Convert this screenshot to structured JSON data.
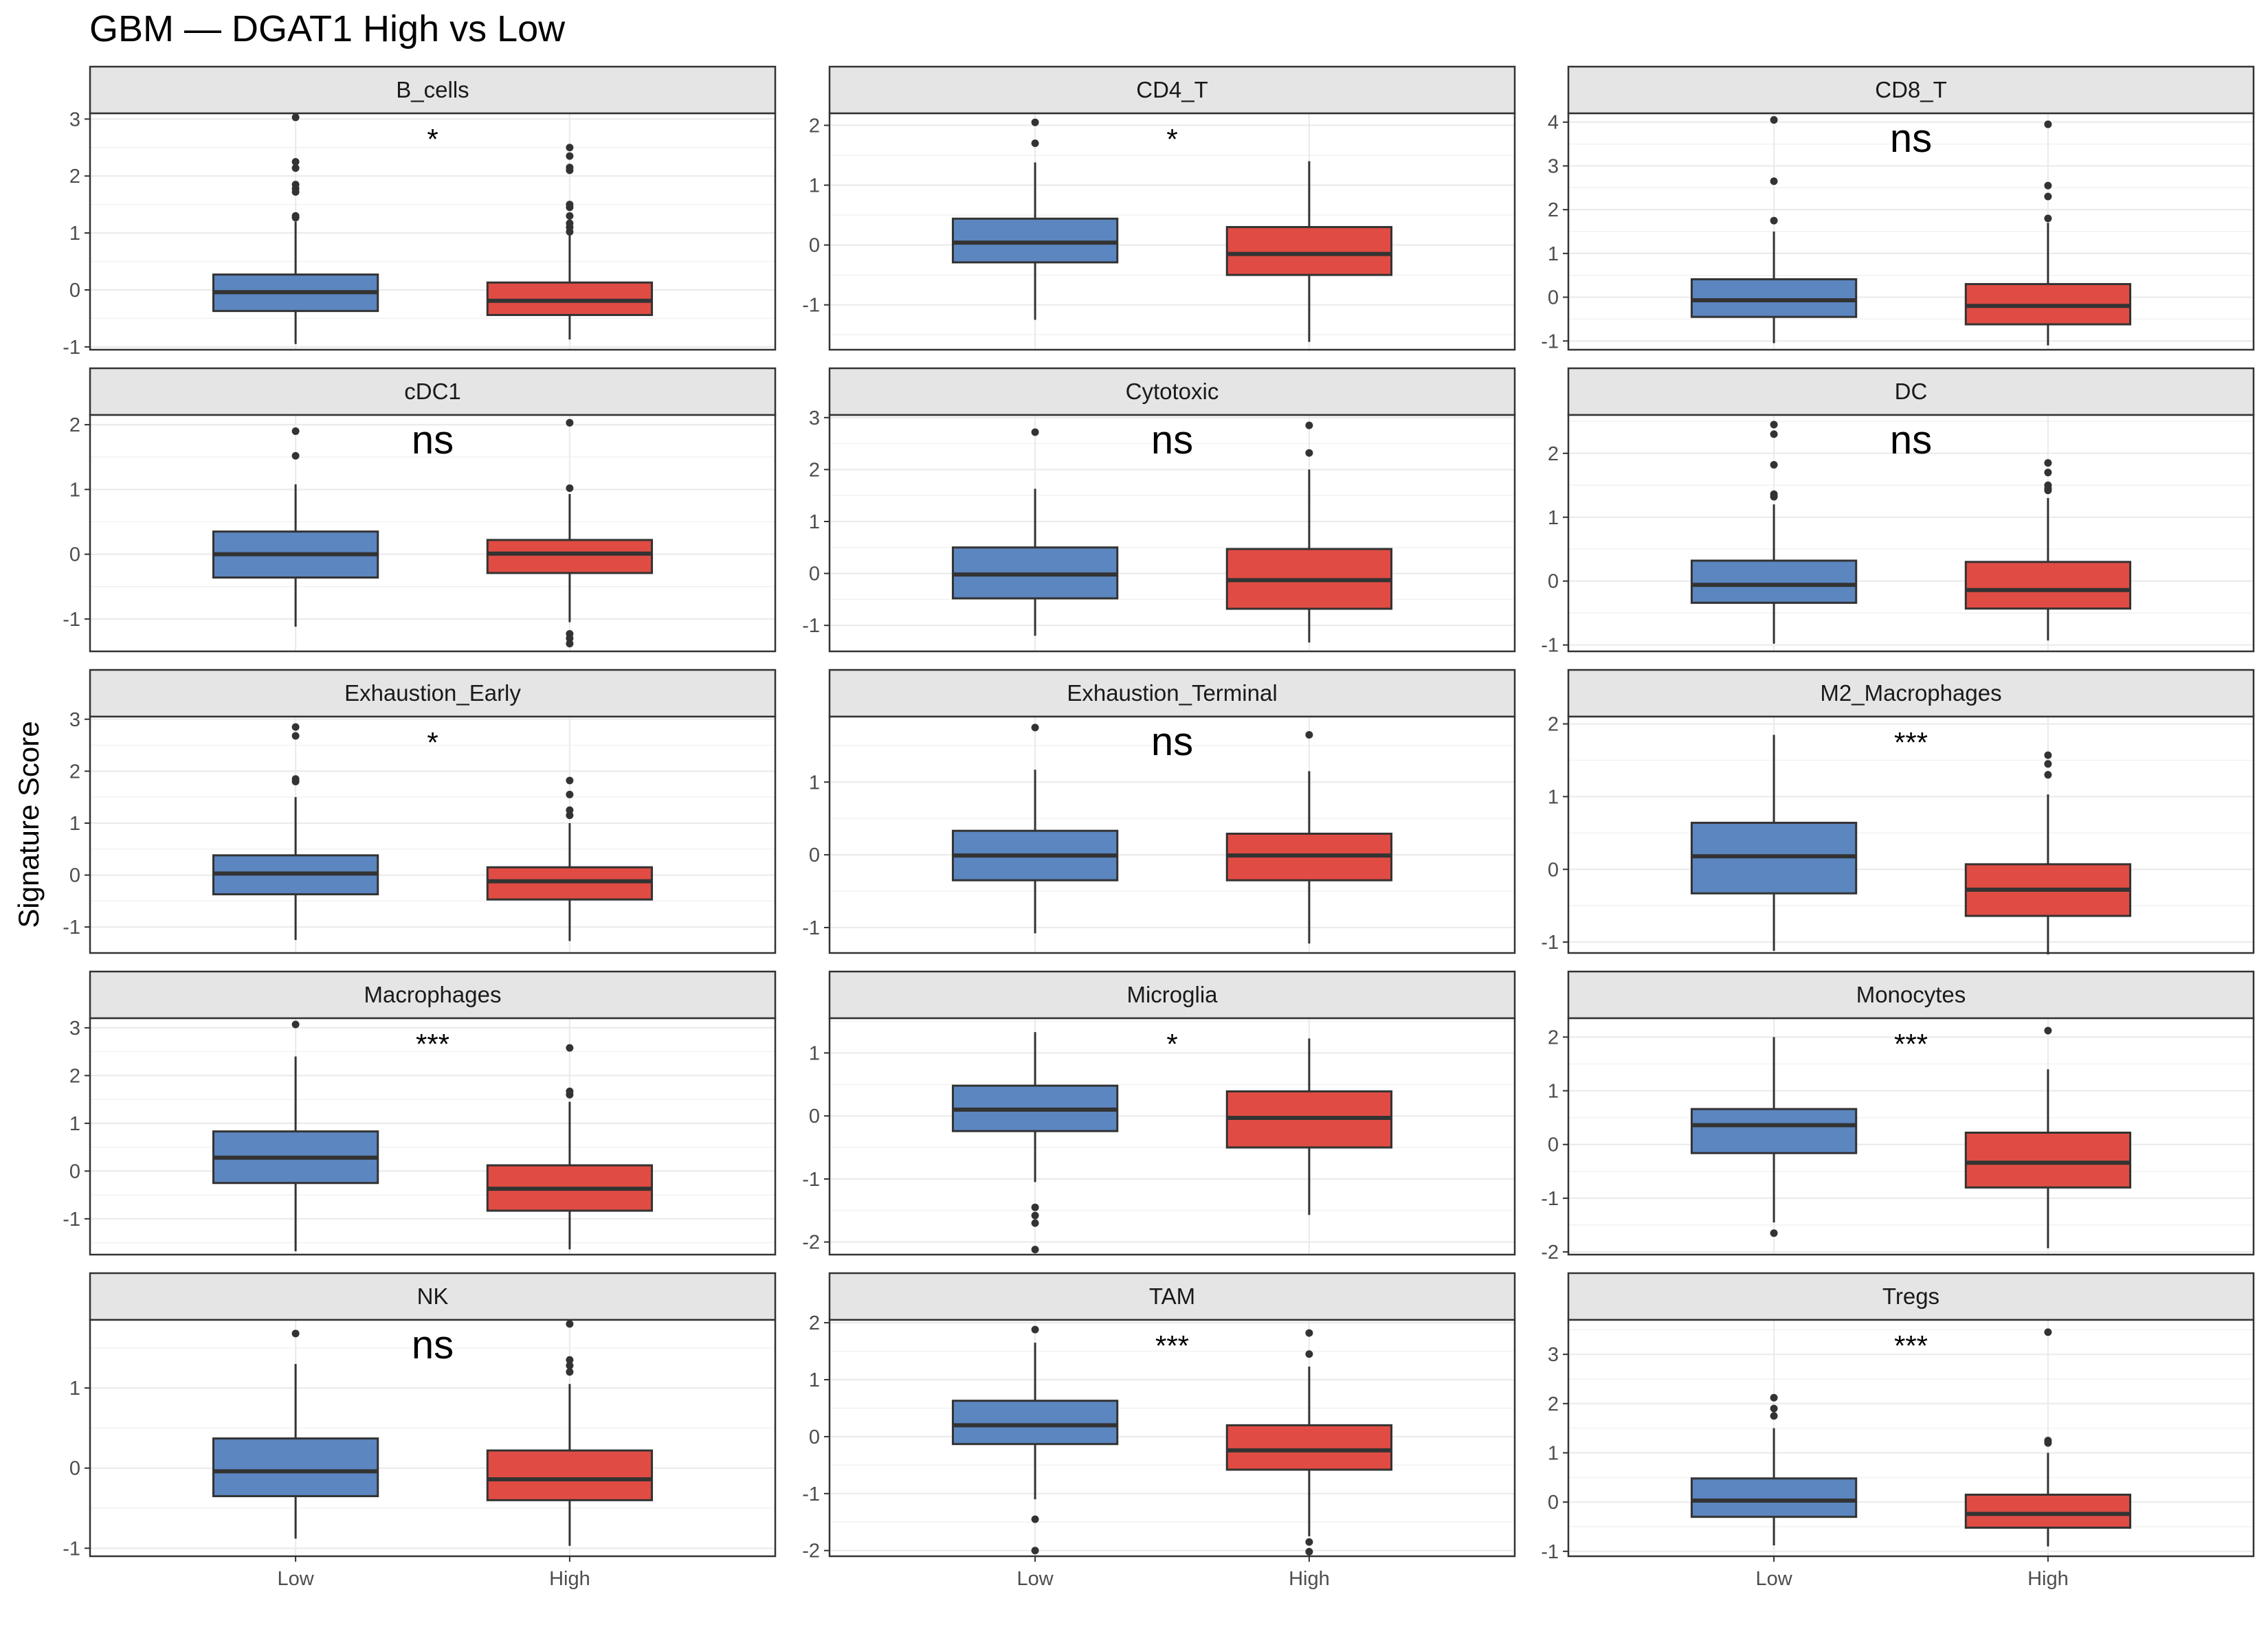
{
  "chart_data": {
    "type": "box",
    "title": "GBM — DGAT1 High vs Low",
    "ylabel": "Signature Score",
    "xlabel": "",
    "categories": [
      "Low",
      "High"
    ],
    "colors": {
      "Low": "#5b86c0",
      "High": "#e04c43"
    },
    "grid": "on",
    "layout": {
      "rows": 5,
      "cols": 3,
      "scales": "free_y"
    },
    "panels": [
      {
        "name": "B_cells",
        "sig": "*",
        "ylim": [
          -1.05,
          3.1
        ],
        "yticks": [
          -1,
          0,
          1,
          2,
          3
        ],
        "boxes": {
          "Low": {
            "min": -0.95,
            "q1": -0.37,
            "median": -0.04,
            "q3": 0.27,
            "max": 1.2,
            "outliers": [
              1.27,
              1.3,
              1.72,
              1.78,
              1.85,
              2.14,
              2.25,
              3.03
            ]
          },
          "High": {
            "min": -0.87,
            "q1": -0.44,
            "median": -0.19,
            "q3": 0.13,
            "max": 0.99,
            "outliers": [
              1.02,
              1.1,
              1.17,
              1.3,
              1.45,
              1.5,
              2.1,
              2.15,
              2.35,
              2.5
            ]
          }
        }
      },
      {
        "name": "CD4_T",
        "sig": "*",
        "ylim": [
          -1.75,
          2.2
        ],
        "yticks": [
          -1,
          0,
          1,
          2
        ],
        "boxes": {
          "Low": {
            "min": -1.25,
            "q1": -0.29,
            "median": 0.04,
            "q3": 0.44,
            "max": 1.38,
            "outliers": [
              1.7,
              2.05
            ]
          },
          "High": {
            "min": -1.62,
            "q1": -0.5,
            "median": -0.15,
            "q3": 0.3,
            "max": 1.4,
            "outliers": []
          }
        }
      },
      {
        "name": "CD8_T",
        "sig": "ns",
        "ylim": [
          -1.2,
          4.2
        ],
        "yticks": [
          -1,
          0,
          1,
          2,
          3,
          4
        ],
        "boxes": {
          "Low": {
            "min": -1.05,
            "q1": -0.45,
            "median": -0.07,
            "q3": 0.41,
            "max": 1.5,
            "outliers": [
              1.75,
              2.65,
              4.05
            ]
          },
          "High": {
            "min": -1.1,
            "q1": -0.62,
            "median": -0.2,
            "q3": 0.3,
            "max": 1.7,
            "outliers": [
              1.8,
              2.3,
              2.55,
              3.95
            ]
          }
        }
      },
      {
        "name": "cDC1",
        "sig": "ns",
        "ylim": [
          -1.5,
          2.15
        ],
        "yticks": [
          -1,
          0,
          1,
          2
        ],
        "boxes": {
          "Low": {
            "min": -1.12,
            "q1": -0.36,
            "median": 0.0,
            "q3": 0.35,
            "max": 1.08,
            "outliers": [
              1.52,
              1.9
            ]
          },
          "High": {
            "min": -1.05,
            "q1": -0.29,
            "median": 0.01,
            "q3": 0.22,
            "max": 0.93,
            "outliers": [
              -1.23,
              -1.3,
              -1.38,
              1.02,
              2.03
            ]
          }
        }
      },
      {
        "name": "Cytotoxic",
        "sig": "ns",
        "ylim": [
          -1.5,
          3.05
        ],
        "yticks": [
          -1,
          0,
          1,
          2,
          3
        ],
        "boxes": {
          "Low": {
            "min": -1.2,
            "q1": -0.48,
            "median": -0.02,
            "q3": 0.5,
            "max": 1.63,
            "outliers": [
              2.72
            ]
          },
          "High": {
            "min": -1.33,
            "q1": -0.68,
            "median": -0.13,
            "q3": 0.47,
            "max": 2.0,
            "outliers": [
              2.32,
              2.85
            ]
          }
        }
      },
      {
        "name": "DC",
        "sig": "ns",
        "ylim": [
          -1.1,
          2.6
        ],
        "yticks": [
          -1,
          0,
          1,
          2
        ],
        "boxes": {
          "Low": {
            "min": -0.98,
            "q1": -0.34,
            "median": -0.06,
            "q3": 0.32,
            "max": 1.2,
            "outliers": [
              1.32,
              1.36,
              1.82,
              2.3,
              2.45
            ]
          },
          "High": {
            "min": -0.93,
            "q1": -0.43,
            "median": -0.14,
            "q3": 0.3,
            "max": 1.3,
            "outliers": [
              1.42,
              1.45,
              1.5,
              1.7,
              1.85
            ]
          }
        }
      },
      {
        "name": "Exhaustion_Early",
        "sig": "*",
        "ylim": [
          -1.5,
          3.05
        ],
        "yticks": [
          -1,
          0,
          1,
          2,
          3
        ],
        "boxes": {
          "Low": {
            "min": -1.25,
            "q1": -0.37,
            "median": 0.03,
            "q3": 0.38,
            "max": 1.5,
            "outliers": [
              1.8,
              1.85,
              2.68,
              2.85
            ]
          },
          "High": {
            "min": -1.27,
            "q1": -0.47,
            "median": -0.12,
            "q3": 0.15,
            "max": 1.0,
            "outliers": [
              1.15,
              1.25,
              1.55,
              1.82
            ]
          }
        }
      },
      {
        "name": "Exhaustion_Terminal",
        "sig": "ns",
        "ylim": [
          -1.35,
          1.9
        ],
        "yticks": [
          -1,
          0,
          1
        ],
        "boxes": {
          "Low": {
            "min": -1.08,
            "q1": -0.35,
            "median": -0.01,
            "q3": 0.33,
            "max": 1.17,
            "outliers": [
              1.75
            ]
          },
          "High": {
            "min": -1.22,
            "q1": -0.35,
            "median": -0.01,
            "q3": 0.29,
            "max": 1.15,
            "outliers": [
              1.65
            ]
          }
        }
      },
      {
        "name": "M2_Macrophages",
        "sig": "***",
        "ylim": [
          -1.15,
          2.1
        ],
        "yticks": [
          -1,
          0,
          1,
          2
        ],
        "boxes": {
          "Low": {
            "min": -1.12,
            "q1": -0.33,
            "median": 0.18,
            "q3": 0.64,
            "max": 1.85,
            "outliers": []
          },
          "High": {
            "min": -1.17,
            "q1": -0.64,
            "median": -0.28,
            "q3": 0.07,
            "max": 1.03,
            "outliers": [
              1.3,
              1.45,
              1.57
            ]
          }
        }
      },
      {
        "name": "Macrophages",
        "sig": "***",
        "ylim": [
          -1.75,
          3.2
        ],
        "yticks": [
          -1,
          0,
          1,
          2,
          3
        ],
        "boxes": {
          "Low": {
            "min": -1.68,
            "q1": -0.25,
            "median": 0.28,
            "q3": 0.83,
            "max": 2.4,
            "outliers": [
              3.07
            ]
          },
          "High": {
            "min": -1.64,
            "q1": -0.83,
            "median": -0.37,
            "q3": 0.12,
            "max": 1.45,
            "outliers": [
              1.6,
              1.67,
              2.58
            ]
          }
        }
      },
      {
        "name": "Microglia",
        "sig": "*",
        "ylim": [
          -2.2,
          1.55
        ],
        "yticks": [
          -2,
          -1,
          0,
          1
        ],
        "boxes": {
          "Low": {
            "min": -1.05,
            "q1": -0.24,
            "median": 0.1,
            "q3": 0.48,
            "max": 1.33,
            "outliers": [
              -1.45,
              -1.58,
              -1.7,
              -2.12
            ]
          },
          "High": {
            "min": -1.57,
            "q1": -0.5,
            "median": -0.03,
            "q3": 0.39,
            "max": 1.23,
            "outliers": []
          }
        }
      },
      {
        "name": "Monocytes",
        "sig": "***",
        "ylim": [
          -2.05,
          2.35
        ],
        "yticks": [
          -2,
          -1,
          0,
          1,
          2
        ],
        "boxes": {
          "Low": {
            "min": -1.45,
            "q1": -0.16,
            "median": 0.36,
            "q3": 0.66,
            "max": 2.0,
            "outliers": [
              -1.65
            ]
          },
          "High": {
            "min": -1.93,
            "q1": -0.8,
            "median": -0.34,
            "q3": 0.22,
            "max": 1.4,
            "outliers": [
              2.12
            ]
          }
        }
      },
      {
        "name": "NK",
        "sig": "ns",
        "ylim": [
          -1.1,
          1.85
        ],
        "yticks": [
          -1,
          0,
          1
        ],
        "boxes": {
          "Low": {
            "min": -0.88,
            "q1": -0.35,
            "median": -0.04,
            "q3": 0.37,
            "max": 1.3,
            "outliers": [
              1.68
            ]
          },
          "High": {
            "min": -0.97,
            "q1": -0.4,
            "median": -0.14,
            "q3": 0.22,
            "max": 1.05,
            "outliers": [
              1.2,
              1.28,
              1.35,
              1.8
            ]
          }
        }
      },
      {
        "name": "TAM",
        "sig": "***",
        "ylim": [
          -2.1,
          2.05
        ],
        "yticks": [
          -2,
          -1,
          0,
          1,
          2
        ],
        "boxes": {
          "Low": {
            "min": -1.1,
            "q1": -0.13,
            "median": 0.2,
            "q3": 0.63,
            "max": 1.65,
            "outliers": [
              -1.45,
              -2.0,
              1.88
            ]
          },
          "High": {
            "min": -1.75,
            "q1": -0.58,
            "median": -0.24,
            "q3": 0.2,
            "max": 1.23,
            "outliers": [
              -1.85,
              -2.02,
              1.45,
              1.82
            ]
          }
        }
      },
      {
        "name": "Tregs",
        "sig": "***",
        "ylim": [
          -1.1,
          3.7
        ],
        "yticks": [
          -1,
          0,
          1,
          2,
          3
        ],
        "boxes": {
          "Low": {
            "min": -0.88,
            "q1": -0.3,
            "median": 0.03,
            "q3": 0.48,
            "max": 1.5,
            "outliers": [
              1.75,
              1.9,
              2.12
            ]
          },
          "High": {
            "min": -0.9,
            "q1": -0.52,
            "median": -0.24,
            "q3": 0.15,
            "max": 1.0,
            "outliers": [
              1.2,
              1.25,
              3.45
            ]
          }
        }
      }
    ]
  }
}
